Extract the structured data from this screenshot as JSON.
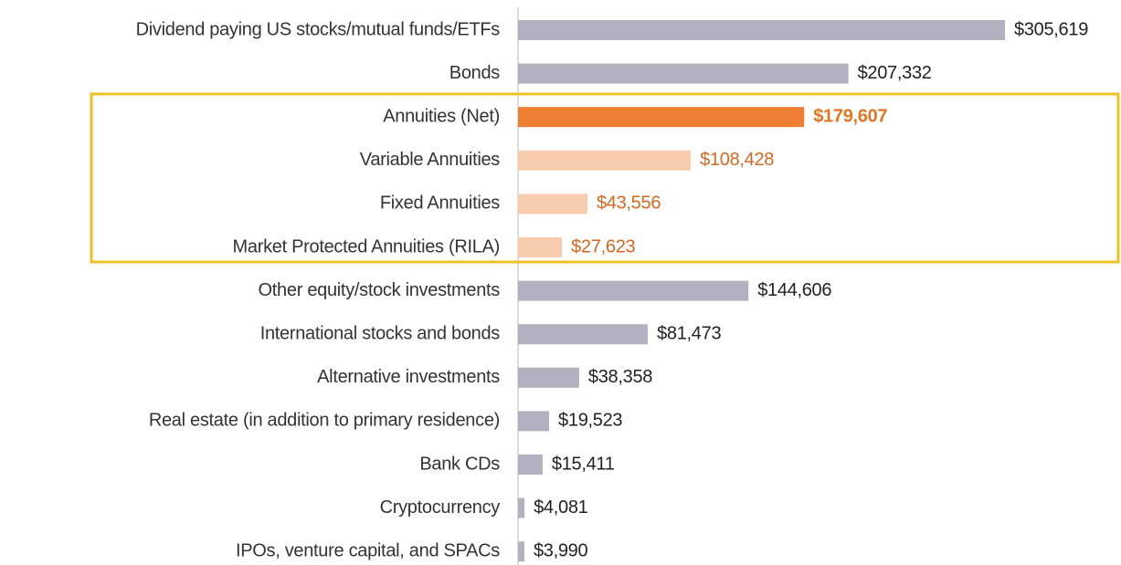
{
  "chart_data": {
    "type": "barh",
    "categories": [
      "Dividend paying US stocks/mutual funds/ETFs",
      "Bonds",
      "Annuities (Net)",
      "Variable Annuities",
      "Fixed Annuities",
      "Market Protected Annuities (RILA)",
      "Other equity/stock investments",
      "International stocks and bonds",
      "Alternative investments",
      "Real estate (in addition to primary residence)",
      "Bank CDs",
      "Cryptocurrency",
      "IPOs, venture capital, and SPACs"
    ],
    "values": [
      305619,
      207332,
      179607,
      108428,
      43556,
      27623,
      144606,
      81473,
      38358,
      19523,
      15411,
      4081,
      3990
    ],
    "value_labels": [
      "$305,619",
      "$207,332",
      "$179,607",
      "$108,428",
      "$43,556",
      "$27,623",
      "$144,606",
      "$81,473",
      "$38,358",
      "$19,523",
      "$15,411",
      "$4,081",
      "$3,990"
    ],
    "colors": [
      "#b3b1c0",
      "#b3b1c0",
      "#ed7d31",
      "#f8cbad",
      "#f8cbad",
      "#f8cbad",
      "#b3b1c0",
      "#b3b1c0",
      "#b3b1c0",
      "#b3b1c0",
      "#b3b1c0",
      "#b3b1c0",
      "#b3b1c0"
    ],
    "label_colors": [
      "#222222",
      "#222222",
      "#e8731f",
      "#d8661c",
      "#d8661c",
      "#d8661c",
      "#222222",
      "#222222",
      "#222222",
      "#222222",
      "#222222",
      "#222222",
      "#222222"
    ],
    "label_bold": [
      false,
      false,
      true,
      false,
      false,
      false,
      false,
      false,
      false,
      false,
      false,
      false,
      false
    ]
  }
}
